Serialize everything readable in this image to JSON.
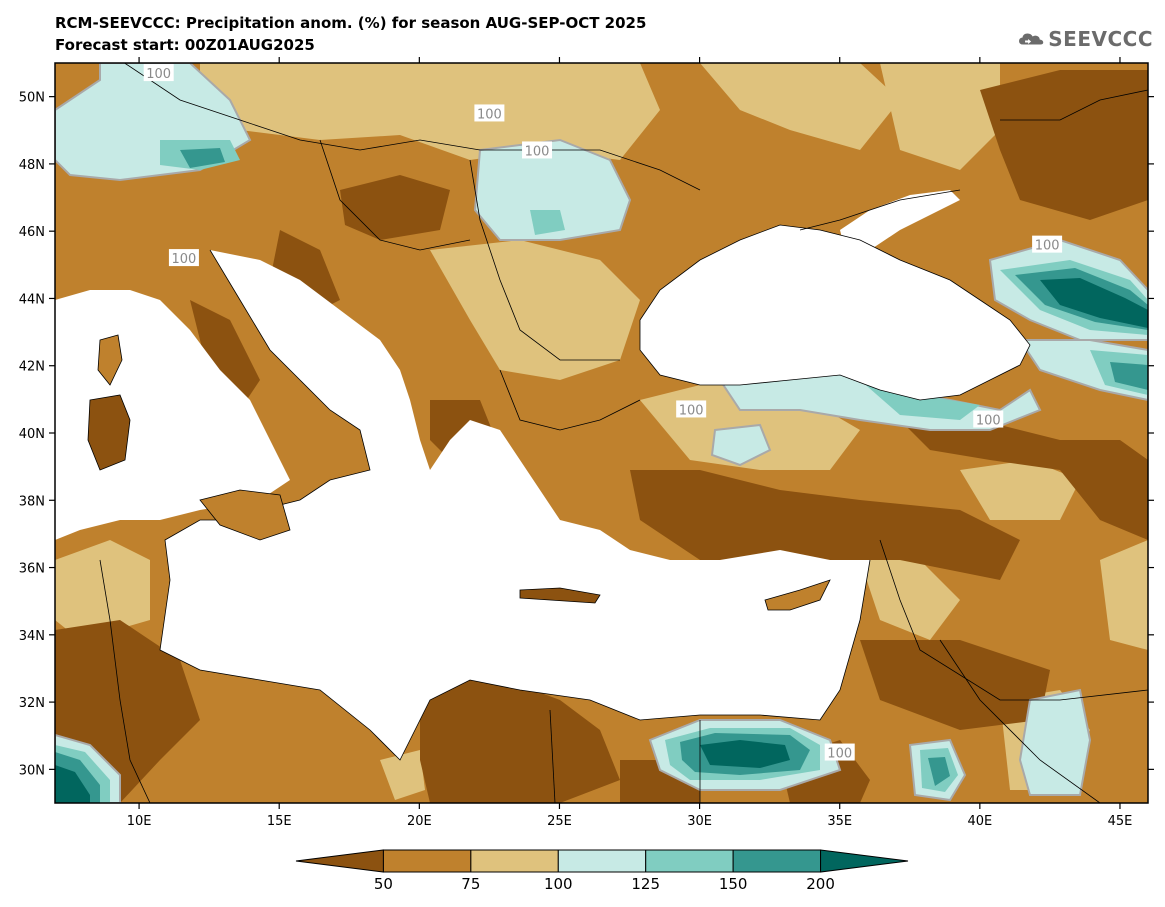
{
  "header": {
    "title_line1": "RCM-SEEVCCC: Precipitation anom. (%) for season AUG-SEP-OCT 2025",
    "title_line2": "Forecast start: 00Z01AUG2025",
    "logo_text": "SEEVCCC"
  },
  "map": {
    "lon_range": [
      7,
      46
    ],
    "lat_range": [
      29,
      51
    ],
    "lat_ticks": [
      "50N",
      "48N",
      "46N",
      "44N",
      "42N",
      "40N",
      "38N",
      "36N",
      "34N",
      "32N",
      "30N"
    ],
    "lon_ticks": [
      "10E",
      "15E",
      "20E",
      "25E",
      "30E",
      "35E",
      "40E",
      "45E"
    ],
    "contour_labels": [
      {
        "text": "100",
        "lon": 10.7,
        "lat": 50.7
      },
      {
        "text": "100",
        "lon": 22.5,
        "lat": 49.5
      },
      {
        "text": "100",
        "lon": 24.2,
        "lat": 48.4
      },
      {
        "text": "100",
        "lon": 11.6,
        "lat": 45.2
      },
      {
        "text": "100",
        "lon": 29.7,
        "lat": 40.7
      },
      {
        "text": "100",
        "lon": 40.3,
        "lat": 40.4
      },
      {
        "text": "100",
        "lon": 42.4,
        "lat": 45.6
      },
      {
        "text": "100",
        "lon": 35.0,
        "lat": 30.5
      }
    ]
  },
  "colorbar": {
    "ticks": [
      "50",
      "75",
      "100",
      "125",
      "150",
      "200"
    ],
    "colors": [
      "#8c5210",
      "#bf812d",
      "#dfc27d",
      "#c7eae5",
      "#80cdc1",
      "#35978f",
      "#01665e"
    ]
  }
}
